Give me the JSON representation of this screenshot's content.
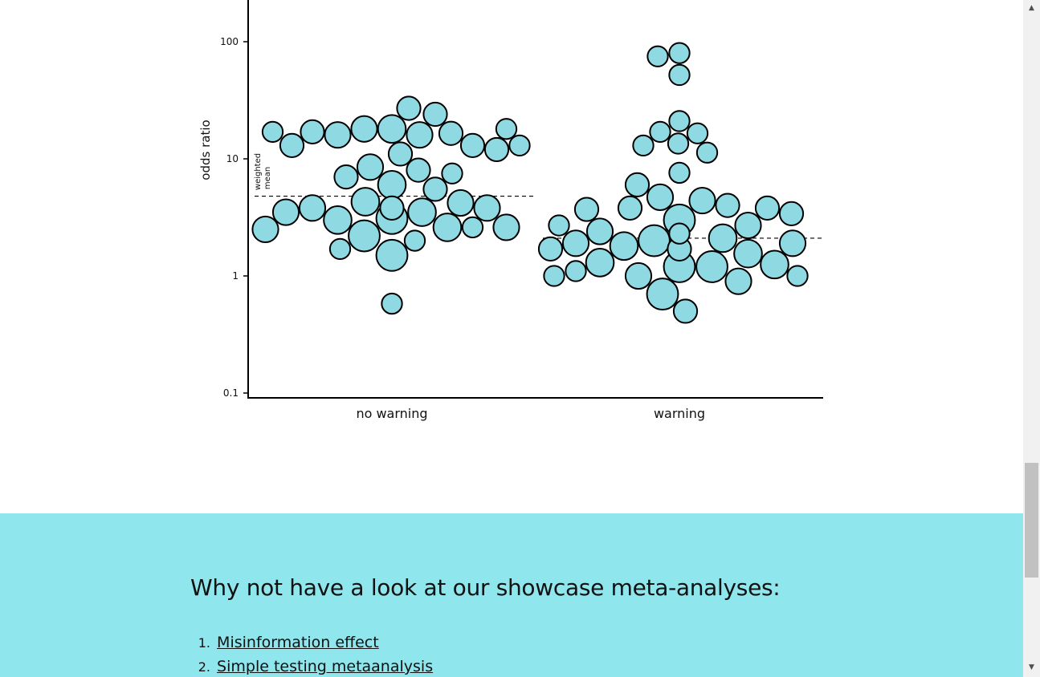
{
  "chart_data": {
    "type": "scatter",
    "ylabel": "odds ratio",
    "yscale": "log",
    "ylim": [
      0.1,
      100
    ],
    "yticks": [
      "100",
      "10",
      "1",
      "0.1"
    ],
    "categories": [
      "no warning",
      "warning"
    ],
    "weighted_mean_label": [
      "weighted",
      "mean"
    ],
    "weighted_means": [
      4.8,
      2.1
    ],
    "colors": {
      "fill": "#8fd9e3",
      "stroke": "#000000"
    },
    "series": [
      {
        "category": "no warning",
        "points": [
          {
            "y": 27,
            "w": 1
          },
          {
            "y": 24,
            "w": 1
          },
          {
            "y": 18,
            "w": 2
          },
          {
            "y": 18,
            "w": 1.5
          },
          {
            "y": 18,
            "w": 0.5
          },
          {
            "y": 17,
            "w": 0.5
          },
          {
            "y": 16.5,
            "w": 1
          },
          {
            "y": 16,
            "w": 1.5
          },
          {
            "y": 16,
            "w": 1.5
          },
          {
            "y": 17,
            "w": 1
          },
          {
            "y": 13,
            "w": 0.5
          },
          {
            "y": 13,
            "w": 1
          },
          {
            "y": 13,
            "w": 1
          },
          {
            "y": 12,
            "w": 1
          },
          {
            "y": 11,
            "w": 1
          },
          {
            "y": 8.5,
            "w": 1.5
          },
          {
            "y": 8,
            "w": 1
          },
          {
            "y": 7.5,
            "w": 0.5
          },
          {
            "y": 7,
            "w": 1
          },
          {
            "y": 6,
            "w": 2
          },
          {
            "y": 5.5,
            "w": 1
          },
          {
            "y": 4.3,
            "w": 2
          },
          {
            "y": 4.2,
            "w": 1.5
          },
          {
            "y": 3.8,
            "w": 1
          },
          {
            "y": 3.8,
            "w": 1.5
          },
          {
            "y": 3.8,
            "w": 1.5
          },
          {
            "y": 3.5,
            "w": 2
          },
          {
            "y": 3.5,
            "w": 1.5
          },
          {
            "y": 3.1,
            "w": 3
          },
          {
            "y": 3,
            "w": 2
          },
          {
            "y": 2.6,
            "w": 1.5
          },
          {
            "y": 2.6,
            "w": 2
          },
          {
            "y": 2.5,
            "w": 1.5
          },
          {
            "y": 2.6,
            "w": 0.5
          },
          {
            "y": 2.2,
            "w": 3
          },
          {
            "y": 2,
            "w": 0.5
          },
          {
            "y": 1.7,
            "w": 0.5
          },
          {
            "y": 1.5,
            "w": 3
          },
          {
            "y": 0.58,
            "w": 0.5
          }
        ]
      },
      {
        "category": "warning",
        "points": [
          {
            "y": 80,
            "w": 0.5
          },
          {
            "y": 75,
            "w": 0.5
          },
          {
            "y": 52,
            "w": 0.5
          },
          {
            "y": 21,
            "w": 0.5
          },
          {
            "y": 17,
            "w": 0.5
          },
          {
            "y": 16.5,
            "w": 0.5
          },
          {
            "y": 13.5,
            "w": 0.5
          },
          {
            "y": 13,
            "w": 0.5
          },
          {
            "y": 11.3,
            "w": 0.5
          },
          {
            "y": 7.6,
            "w": 0.5
          },
          {
            "y": 6,
            "w": 1
          },
          {
            "y": 4.7,
            "w": 1.5
          },
          {
            "y": 4.4,
            "w": 1.5
          },
          {
            "y": 4,
            "w": 1
          },
          {
            "y": 3.8,
            "w": 1
          },
          {
            "y": 3.8,
            "w": 1
          },
          {
            "y": 3.7,
            "w": 1
          },
          {
            "y": 3.4,
            "w": 1
          },
          {
            "y": 3,
            "w": 3
          },
          {
            "y": 2.7,
            "w": 1.5
          },
          {
            "y": 2.7,
            "w": 0.5
          },
          {
            "y": 2.4,
            "w": 1.5
          },
          {
            "y": 2.3,
            "w": 0.5
          },
          {
            "y": 2.1,
            "w": 2
          },
          {
            "y": 2,
            "w": 3
          },
          {
            "y": 1.9,
            "w": 1.5
          },
          {
            "y": 1.9,
            "w": 1.5
          },
          {
            "y": 1.8,
            "w": 2
          },
          {
            "y": 1.7,
            "w": 1
          },
          {
            "y": 1.7,
            "w": 1
          },
          {
            "y": 1.55,
            "w": 2
          },
          {
            "y": 1.3,
            "w": 2
          },
          {
            "y": 1.25,
            "w": 2
          },
          {
            "y": 1.2,
            "w": 3
          },
          {
            "y": 1.2,
            "w": 3
          },
          {
            "y": 1.1,
            "w": 0.5
          },
          {
            "y": 1,
            "w": 1.5
          },
          {
            "y": 1,
            "w": 0.5
          },
          {
            "y": 1,
            "w": 0.5
          },
          {
            "y": 0.9,
            "w": 1.5
          },
          {
            "y": 0.7,
            "w": 3
          },
          {
            "y": 0.5,
            "w": 1
          }
        ]
      }
    ]
  },
  "showcase": {
    "heading": "Why not have a look at our showcase meta-analyses:",
    "items": [
      {
        "number": "1.",
        "label": "Misinformation effect"
      },
      {
        "number": "2.",
        "label": "Simple testing metaanalysis"
      }
    ]
  },
  "scrollbar": {
    "up_icon": "▲",
    "down_icon": "▼"
  }
}
